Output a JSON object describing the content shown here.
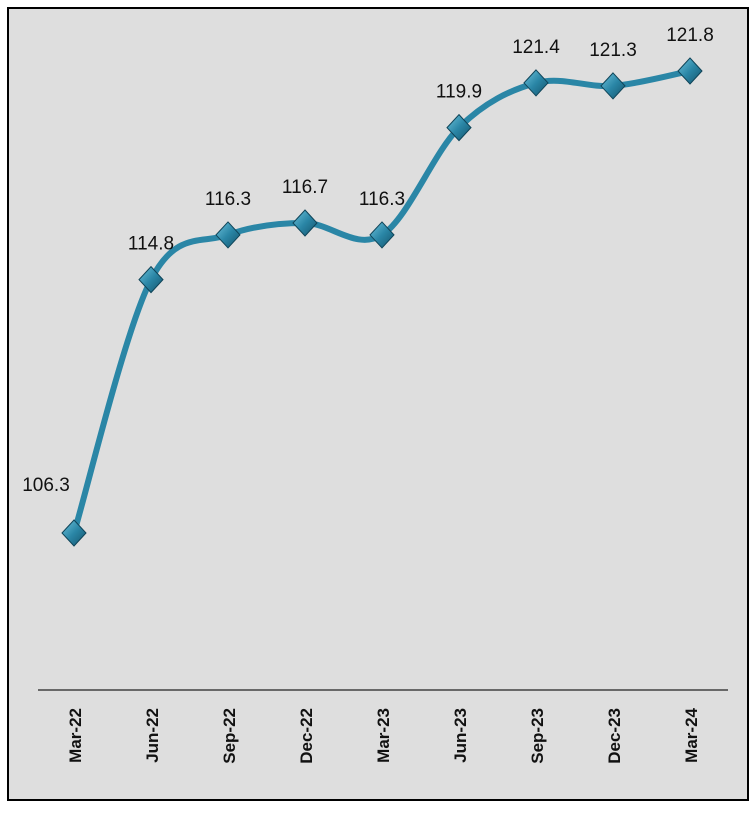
{
  "chart_data": {
    "type": "line",
    "categories": [
      "Mar-22",
      "Jun-22",
      "Sep-22",
      "Dec-22",
      "Mar-23",
      "Jun-23",
      "Sep-23",
      "Dec-23",
      "Mar-24"
    ],
    "values": [
      106.3,
      114.8,
      116.3,
      116.7,
      116.3,
      119.9,
      121.4,
      121.3,
      121.8
    ],
    "color": "#2a86a6"
  }
}
